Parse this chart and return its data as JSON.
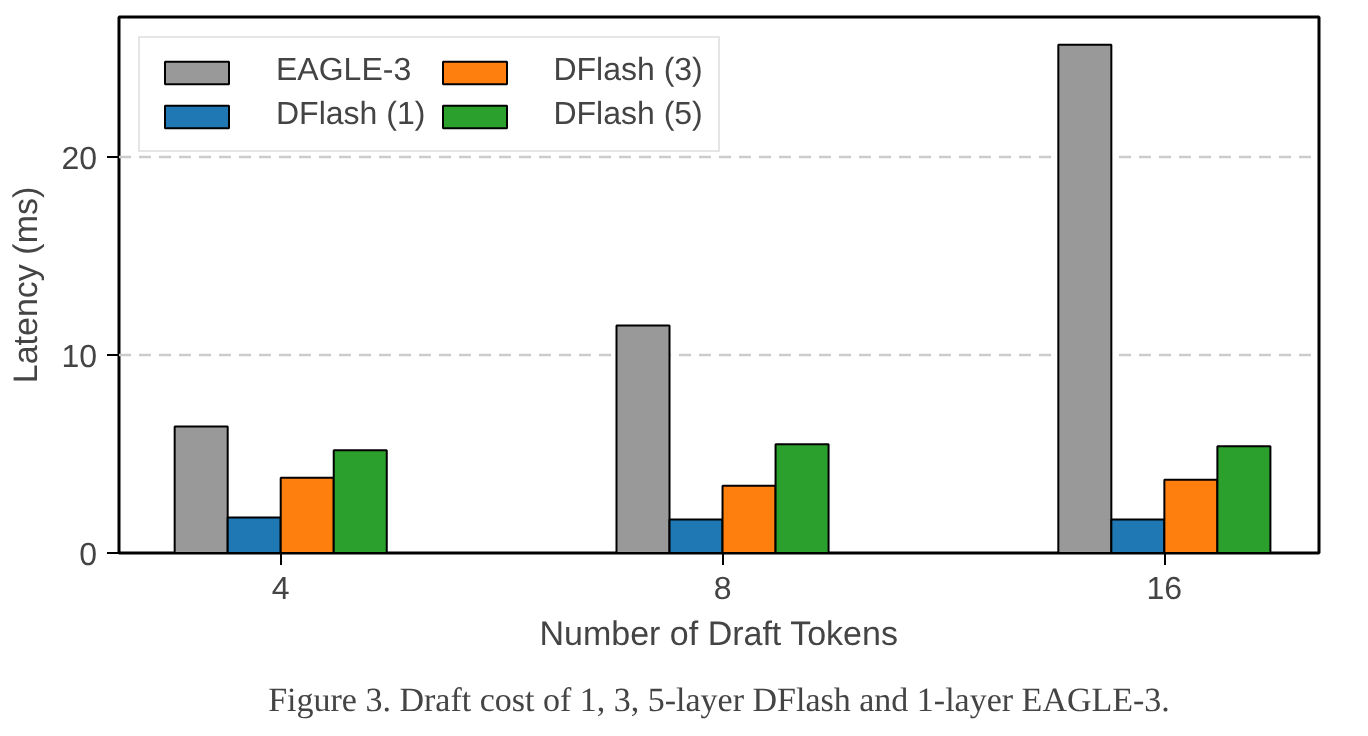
{
  "chart_data": {
    "type": "bar",
    "xlabel": "Number of Draft Tokens",
    "ylabel": "Latency (ms)",
    "categories": [
      "4",
      "8",
      "16"
    ],
    "series": [
      {
        "name": "EAGLE-3",
        "color": "#999999",
        "values": [
          6.4,
          11.5,
          25.7
        ]
      },
      {
        "name": "DFlash (1)",
        "color": "#1f77b4",
        "values": [
          1.8,
          1.7,
          1.7
        ]
      },
      {
        "name": "DFlash (3)",
        "color": "#ff7f0e",
        "values": [
          3.8,
          3.4,
          3.7
        ]
      },
      {
        "name": "DFlash (5)",
        "color": "#2ca02c",
        "values": [
          5.2,
          5.5,
          5.4
        ]
      }
    ],
    "ylim": [
      0,
      27.1
    ],
    "yticks": [
      0,
      10,
      20
    ],
    "grid": "y",
    "legend": "top left",
    "annotations": [
      "Figure 3. Draft cost of 1, 3, 5-layer DFlash and 1-layer EAGLE-3."
    ]
  }
}
